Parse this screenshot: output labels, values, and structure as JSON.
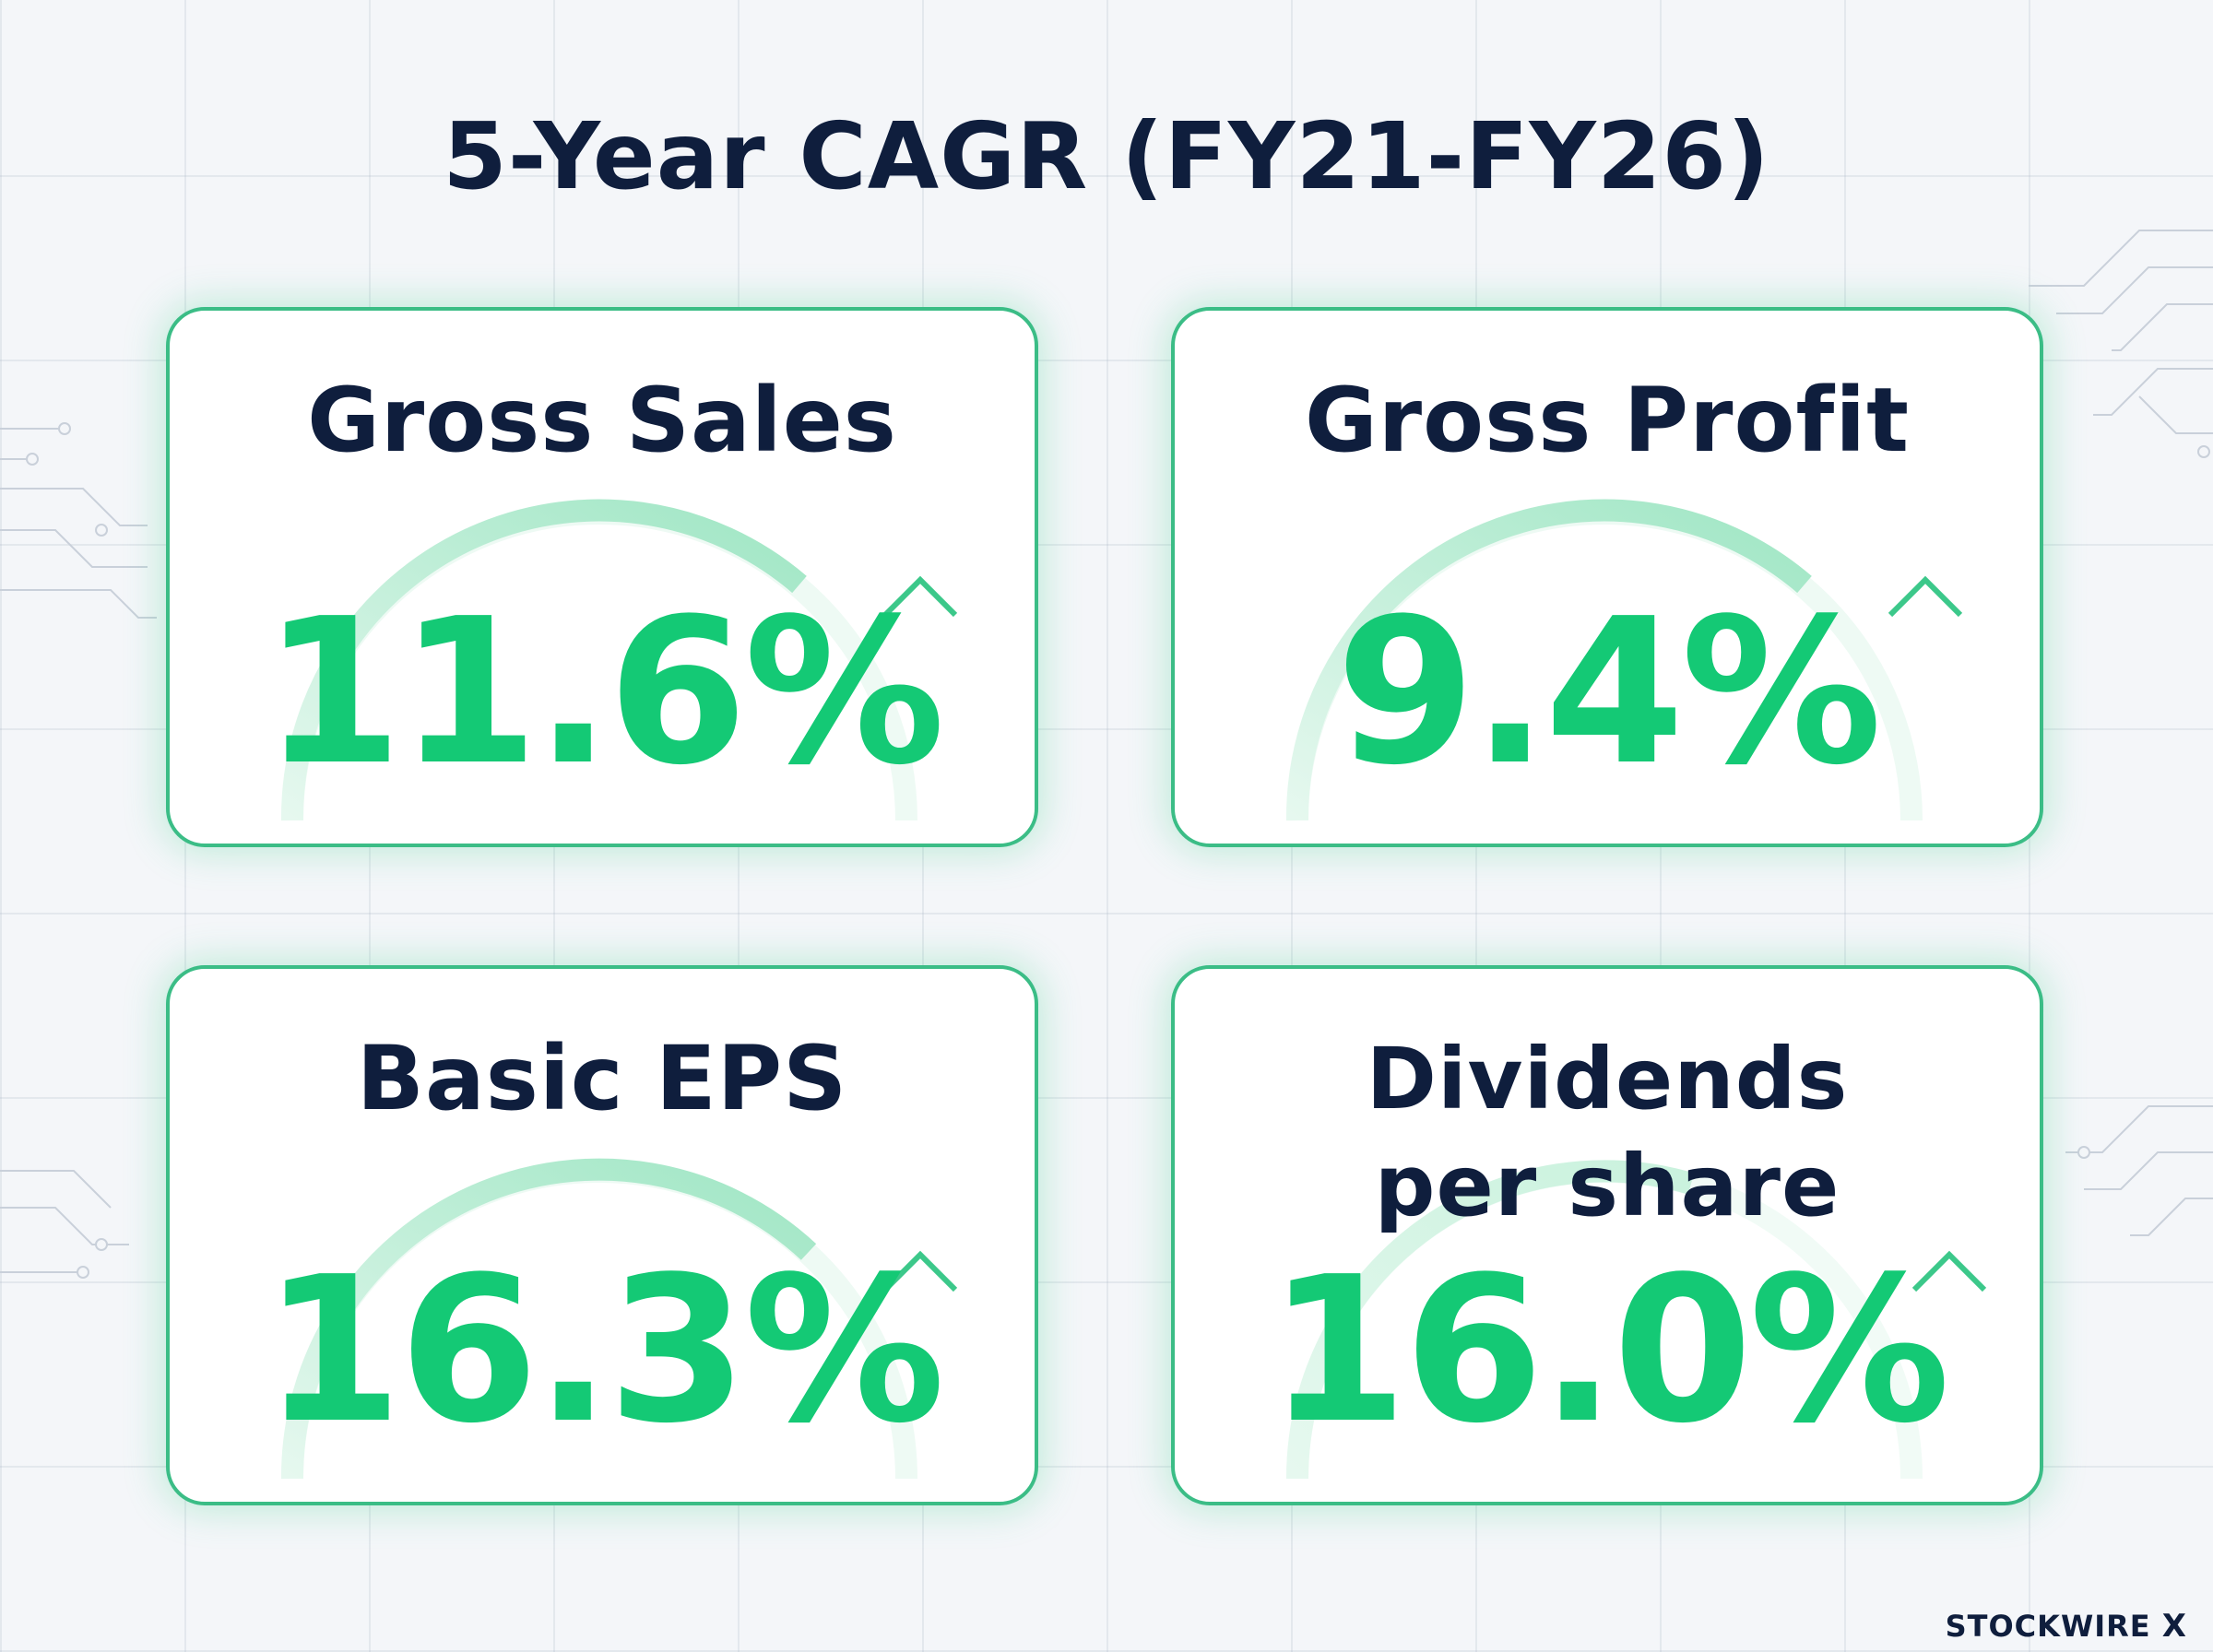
{
  "page": {
    "title": "5-Year CAGR (FY21-FY26)",
    "brand": "STOCKWIRE",
    "brand_mark": "X"
  },
  "colors": {
    "navy": "#0f1e3d",
    "green": "#14c975",
    "border": "#3bbd86",
    "arc": "#c9f2dd"
  },
  "icons": [
    "up-arrow-icon",
    "gauge-arc"
  ],
  "chart_data": {
    "type": "table",
    "title": "5-Year CAGR (FY21-FY26)",
    "categories": [
      "Gross Sales",
      "Gross Profit",
      "Basic EPS",
      "Dividends per share"
    ],
    "values": [
      11.6,
      9.4,
      16.3,
      16.0
    ],
    "unit": "%",
    "labels": [
      "11.6%",
      "9.4%",
      "16.3%",
      "16.0%"
    ]
  },
  "cards": [
    {
      "label": "Gross Sales",
      "value": "11.6%"
    },
    {
      "label": "Gross Profit",
      "value": "9.4%"
    },
    {
      "label": "Basic EPS",
      "value": "16.3%"
    },
    {
      "label": "Dividends per share",
      "label_line1": "Dividends",
      "label_line2": "per share",
      "value": "16.0%"
    }
  ]
}
